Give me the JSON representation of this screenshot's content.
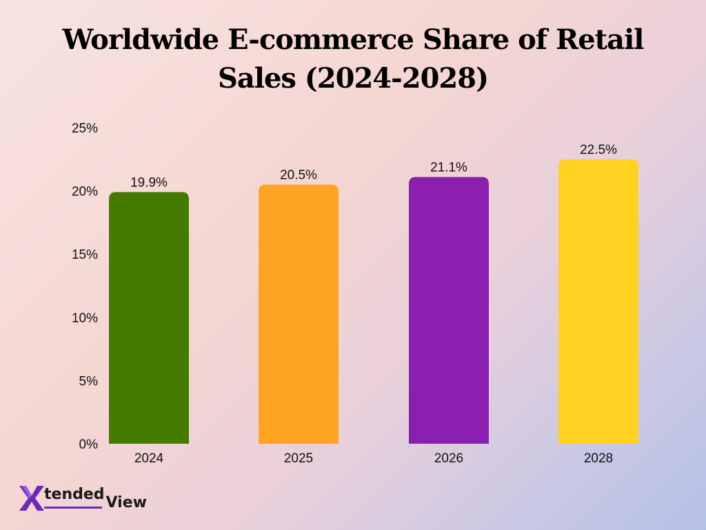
{
  "title_lines": [
    "Worldwide E-commerce Share of Retail",
    "Sales (2024-2028)"
  ],
  "logo": {
    "letter": "X",
    "text_a": "tended",
    "text_b": "View"
  },
  "chart_data": {
    "type": "bar",
    "title": "Worldwide E-commerce Share of Retail Sales (2024-2028)",
    "categories": [
      "2024",
      "2025",
      "2026",
      "2028"
    ],
    "values": [
      19.9,
      20.5,
      21.1,
      22.5
    ],
    "value_labels": [
      "19.9%",
      "20.5%",
      "21.1%",
      "22.5%"
    ],
    "colors": [
      "#447a00",
      "#ffa322",
      "#8b1faf",
      "#ffd221"
    ],
    "ylim": [
      0,
      25
    ],
    "yticks": [
      0,
      5,
      10,
      15,
      20,
      25
    ],
    "ytick_labels": [
      "0%",
      "5%",
      "10%",
      "15%",
      "20%",
      "25%"
    ],
    "xlabel": "",
    "ylabel": "",
    "grid": false,
    "legend": "none"
  }
}
